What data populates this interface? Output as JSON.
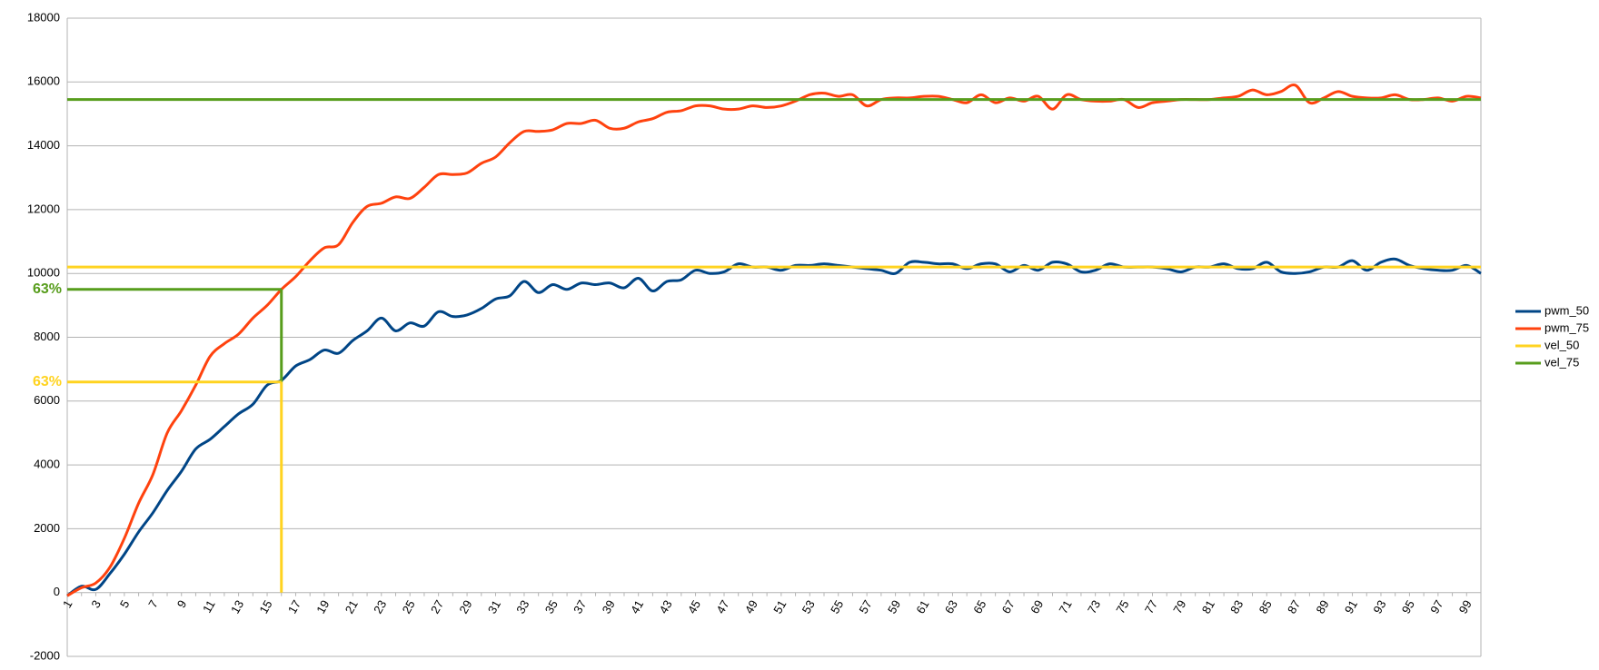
{
  "chart_data": {
    "type": "line",
    "categories": [
      1,
      null,
      3,
      null,
      5,
      null,
      7,
      null,
      9,
      null,
      11,
      null,
      13,
      null,
      15,
      null,
      17,
      null,
      19,
      null,
      21,
      null,
      23,
      null,
      25,
      null,
      27,
      null,
      29,
      null,
      31,
      null,
      33,
      null,
      35,
      null,
      37,
      null,
      39,
      null,
      41,
      null,
      43,
      null,
      45,
      null,
      47,
      null,
      49,
      null,
      51,
      null,
      53,
      null,
      55,
      null,
      57,
      null,
      59,
      null,
      61,
      null,
      63,
      null,
      65,
      null,
      67,
      null,
      69,
      null,
      71,
      null,
      73,
      null,
      75,
      null,
      77,
      null,
      79,
      null,
      81,
      null,
      83,
      null,
      85,
      null,
      87,
      null,
      89,
      null,
      91,
      null,
      93,
      null,
      95,
      null,
      97,
      null,
      99,
      null
    ],
    "series": [
      {
        "name": "pwm_50",
        "color": "#004586",
        "values": [
          -100,
          200,
          100,
          600,
          1200,
          1900,
          2500,
          3200,
          3800,
          4500,
          4800,
          5200,
          5600,
          5900,
          6500,
          6650,
          7100,
          7300,
          7600,
          7500,
          7900,
          8200,
          8600,
          8200,
          8450,
          8350,
          8800,
          8650,
          8700,
          8900,
          9200,
          9300,
          9750,
          9400,
          9650,
          9500,
          9700,
          9650,
          9700,
          9550,
          9850,
          9450,
          9750,
          9800,
          10100,
          10000,
          10050,
          10300,
          10200,
          10200,
          10100,
          10250,
          10250,
          10300,
          10250,
          10200,
          10150,
          10100,
          10000,
          10350,
          10350,
          10300,
          10300,
          10150,
          10300,
          10300,
          10050,
          10250,
          10100,
          10350,
          10300,
          10050,
          10100,
          10300,
          10200,
          10200,
          10200,
          10150,
          10050,
          10200,
          10200,
          10300,
          10150,
          10150,
          10350,
          10050,
          10000,
          10050,
          10200,
          10200,
          10400,
          10100,
          10350,
          10450,
          10250,
          10150,
          10100,
          10100,
          10250,
          10000
        ]
      },
      {
        "name": "pwm_75",
        "color": "#ff420e",
        "values": [
          -100,
          150,
          300,
          800,
          1700,
          2800,
          3700,
          5000,
          5700,
          6500,
          7400,
          7800,
          8100,
          8600,
          9000,
          9500,
          9900,
          10400,
          10800,
          10900,
          11600,
          12100,
          12200,
          12400,
          12350,
          12700,
          13100,
          13100,
          13150,
          13450,
          13650,
          14100,
          14450,
          14450,
          14500,
          14700,
          14700,
          14800,
          14550,
          14550,
          14750,
          14850,
          15050,
          15100,
          15250,
          15250,
          15150,
          15150,
          15250,
          15200,
          15250,
          15400,
          15600,
          15650,
          15550,
          15600,
          15250,
          15450,
          15500,
          15500,
          15550,
          15550,
          15450,
          15350,
          15600,
          15350,
          15500,
          15400,
          15550,
          15150,
          15600,
          15450,
          15400,
          15400,
          15450,
          15200,
          15350,
          15400,
          15450,
          15450,
          15450,
          15500,
          15550,
          15750,
          15600,
          15700,
          15900,
          15350,
          15500,
          15700,
          15550,
          15500,
          15500,
          15600,
          15450,
          15450,
          15500,
          15400,
          15550,
          15500
        ]
      },
      {
        "name": "vel_50",
        "color": "#ffd320",
        "values": [
          10200,
          10200,
          10200,
          10200,
          10200,
          10200,
          10200,
          10200,
          10200,
          10200,
          10200,
          10200,
          10200,
          10200,
          10200,
          10200,
          10200,
          10200,
          10200,
          10200,
          10200,
          10200,
          10200,
          10200,
          10200,
          10200,
          10200,
          10200,
          10200,
          10200,
          10200,
          10200,
          10200,
          10200,
          10200,
          10200,
          10200,
          10200,
          10200,
          10200,
          10200,
          10200,
          10200,
          10200,
          10200,
          10200,
          10200,
          10200,
          10200,
          10200,
          10200,
          10200,
          10200,
          10200,
          10200,
          10200,
          10200,
          10200,
          10200,
          10200,
          10200,
          10200,
          10200,
          10200,
          10200,
          10200,
          10200,
          10200,
          10200,
          10200,
          10200,
          10200,
          10200,
          10200,
          10200,
          10200,
          10200,
          10200,
          10200,
          10200,
          10200,
          10200,
          10200,
          10200,
          10200,
          10200,
          10200,
          10200,
          10200,
          10200,
          10200,
          10200,
          10200,
          10200,
          10200,
          10200,
          10200,
          10200,
          10200,
          10200
        ]
      },
      {
        "name": "vel_75",
        "color": "#579d1c",
        "values": [
          15450,
          15450,
          15450,
          15450,
          15450,
          15450,
          15450,
          15450,
          15450,
          15450,
          15450,
          15450,
          15450,
          15450,
          15450,
          15450,
          15450,
          15450,
          15450,
          15450,
          15450,
          15450,
          15450,
          15450,
          15450,
          15450,
          15450,
          15450,
          15450,
          15450,
          15450,
          15450,
          15450,
          15450,
          15450,
          15450,
          15450,
          15450,
          15450,
          15450,
          15450,
          15450,
          15450,
          15450,
          15450,
          15450,
          15450,
          15450,
          15450,
          15450,
          15450,
          15450,
          15450,
          15450,
          15450,
          15450,
          15450,
          15450,
          15450,
          15450,
          15450,
          15450,
          15450,
          15450,
          15450,
          15450,
          15450,
          15450,
          15450,
          15450,
          15450,
          15450,
          15450,
          15450,
          15450,
          15450,
          15450,
          15450,
          15450,
          15450,
          15450,
          15450,
          15450,
          15450,
          15450,
          15450,
          15450,
          15450,
          15450,
          15450,
          15450,
          15450,
          15450,
          15450,
          15450,
          15450,
          15450,
          15450,
          15450,
          15450
        ]
      }
    ],
    "annotations": [
      {
        "text": "63%",
        "x": 16,
        "y": 9500,
        "color": "#579d1c"
      },
      {
        "text": "63%",
        "x": 16,
        "y": 6600,
        "color": "#ffd320"
      }
    ],
    "ylim": [
      -2000,
      18000
    ],
    "yticks": [
      -2000,
      0,
      2000,
      4000,
      6000,
      8000,
      10000,
      12000,
      14000,
      16000,
      18000
    ],
    "grid": true,
    "legend": "right"
  }
}
